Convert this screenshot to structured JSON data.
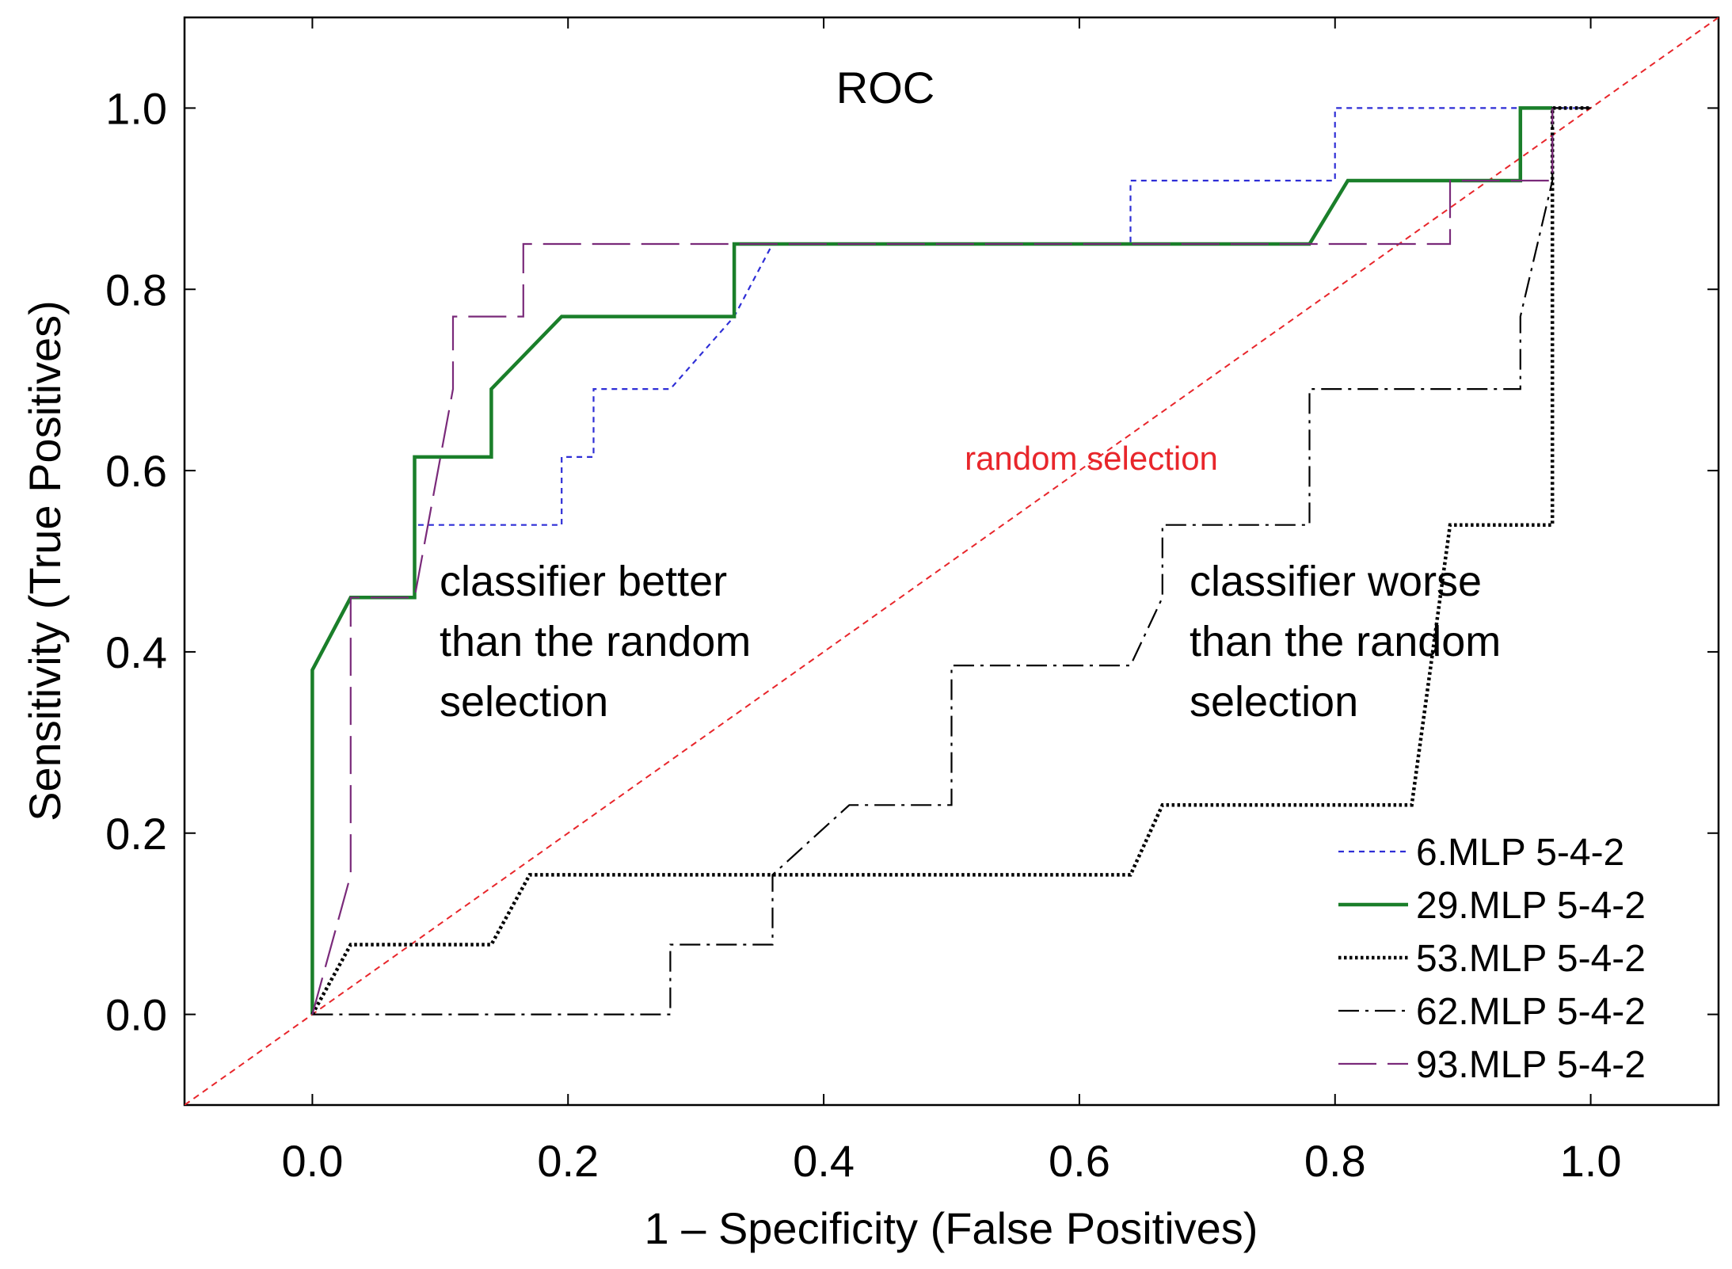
{
  "chart_data": {
    "type": "line",
    "title": "ROC",
    "xlabel": "1 – Specificity (False Positives)",
    "ylabel": "Sensitivity (True Positives)",
    "xlim": [
      -0.1,
      1.1
    ],
    "ylim": [
      -0.1,
      1.1
    ],
    "xticks": [
      0.0,
      0.2,
      0.4,
      0.6,
      0.8,
      1.0
    ],
    "yticks": [
      0.0,
      0.2,
      0.4,
      0.6,
      0.8,
      1.0
    ],
    "xtick_labels": [
      "0.0",
      "0.2",
      "0.4",
      "0.6",
      "0.8",
      "1.0"
    ],
    "ytick_labels": [
      "0.0",
      "0.2",
      "0.4",
      "0.6",
      "0.8",
      "1.0"
    ],
    "grid": false,
    "legend_position": "bottom-right",
    "reference_line": {
      "label": "random selection",
      "color": "#e8262b",
      "points": [
        [
          -0.1,
          -0.1
        ],
        [
          1.1,
          1.1
        ]
      ]
    },
    "annotations": [
      {
        "text_lines": [
          "classifier better",
          "than the random",
          "selection"
        ]
      },
      {
        "text_lines": [
          "classifier worse",
          "than the random",
          "selection"
        ]
      }
    ],
    "series": [
      {
        "name": "6.MLP 5-4-2",
        "color": "#2e2ed6",
        "style": "dotted",
        "points": [
          [
            0,
            0
          ],
          [
            0,
            0.38
          ],
          [
            0.03,
            0.46
          ],
          [
            0.08,
            0.46
          ],
          [
            0.08,
            0.54
          ],
          [
            0.195,
            0.54
          ],
          [
            0.195,
            0.615
          ],
          [
            0.22,
            0.615
          ],
          [
            0.22,
            0.69
          ],
          [
            0.28,
            0.69
          ],
          [
            0.33,
            0.77
          ],
          [
            0.36,
            0.85
          ],
          [
            0.64,
            0.85
          ],
          [
            0.64,
            0.92
          ],
          [
            0.8,
            0.92
          ],
          [
            0.8,
            1.0
          ],
          [
            0.97,
            1.0
          ],
          [
            1.0,
            1.0
          ]
        ]
      },
      {
        "name": "29.MLP 5-4-2",
        "color": "#1a7f2a",
        "style": "solid-thick",
        "points": [
          [
            0,
            0
          ],
          [
            0,
            0.38
          ],
          [
            0.03,
            0.46
          ],
          [
            0.08,
            0.46
          ],
          [
            0.08,
            0.615
          ],
          [
            0.14,
            0.615
          ],
          [
            0.14,
            0.69
          ],
          [
            0.195,
            0.77
          ],
          [
            0.33,
            0.77
          ],
          [
            0.33,
            0.85
          ],
          [
            0.78,
            0.85
          ],
          [
            0.81,
            0.92
          ],
          [
            0.945,
            0.92
          ],
          [
            0.945,
            1.0
          ],
          [
            0.97,
            1.0
          ]
        ]
      },
      {
        "name": "53.MLP 5-4-2",
        "color": "#000000",
        "style": "dotted-thick",
        "points": [
          [
            0,
            0
          ],
          [
            0.03,
            0.077
          ],
          [
            0.14,
            0.077
          ],
          [
            0.17,
            0.154
          ],
          [
            0.64,
            0.154
          ],
          [
            0.665,
            0.231
          ],
          [
            0.86,
            0.231
          ],
          [
            0.89,
            0.54
          ],
          [
            0.97,
            0.54
          ],
          [
            0.97,
            1.0
          ],
          [
            1.0,
            1.0
          ]
        ]
      },
      {
        "name": "62.MLP 5-4-2",
        "color": "#000000",
        "style": "dash-dot",
        "points": [
          [
            0,
            0
          ],
          [
            0.28,
            0
          ],
          [
            0.28,
            0.077
          ],
          [
            0.36,
            0.077
          ],
          [
            0.36,
            0.154
          ],
          [
            0.42,
            0.231
          ],
          [
            0.5,
            0.231
          ],
          [
            0.5,
            0.385
          ],
          [
            0.64,
            0.385
          ],
          [
            0.665,
            0.46
          ],
          [
            0.665,
            0.54
          ],
          [
            0.78,
            0.54
          ],
          [
            0.78,
            0.69
          ],
          [
            0.945,
            0.69
          ],
          [
            0.945,
            0.77
          ],
          [
            0.97,
            0.92
          ],
          [
            0.97,
            1.0
          ],
          [
            1.0,
            1.0
          ]
        ]
      },
      {
        "name": "93.MLP 5-4-2",
        "color": "#7a2a7a",
        "style": "long-dash",
        "points": [
          [
            0,
            0
          ],
          [
            0.03,
            0.154
          ],
          [
            0.03,
            0.46
          ],
          [
            0.08,
            0.46
          ],
          [
            0.11,
            0.69
          ],
          [
            0.11,
            0.77
          ],
          [
            0.165,
            0.77
          ],
          [
            0.165,
            0.85
          ],
          [
            0.89,
            0.85
          ],
          [
            0.89,
            0.92
          ],
          [
            0.97,
            0.92
          ],
          [
            0.97,
            1.0
          ]
        ]
      }
    ]
  }
}
